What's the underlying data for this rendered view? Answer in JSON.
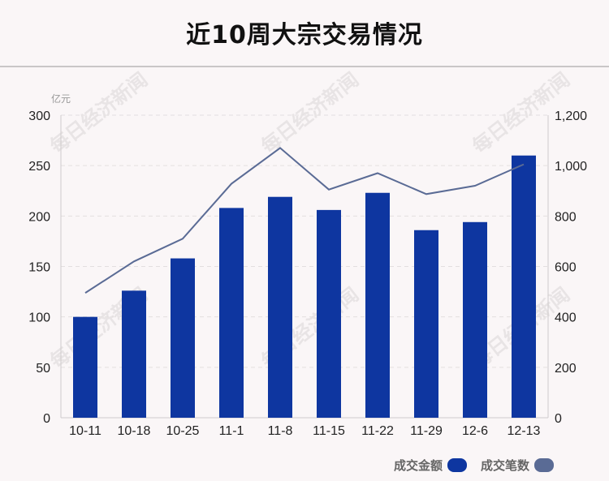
{
  "title": "近10周大宗交易情况",
  "chart_data": {
    "type": "bar",
    "categories": [
      "10-11",
      "10-18",
      "10-25",
      "11-1",
      "11-8",
      "11-15",
      "11-22",
      "11-29",
      "12-6",
      "12-13"
    ],
    "series": [
      {
        "name": "成交金额",
        "type": "bar",
        "axis": "left",
        "color": "#0e36a0",
        "values": [
          100,
          126,
          158,
          208,
          219,
          206,
          223,
          186,
          194,
          260
        ]
      },
      {
        "name": "成交笔数",
        "type": "line",
        "axis": "right",
        "color": "#5a6b95",
        "values": [
          495,
          620,
          710,
          928,
          1070,
          905,
          970,
          887,
          920,
          1005
        ]
      }
    ],
    "y_left": {
      "unit": "亿元",
      "ticks": [
        "0",
        "50",
        "100",
        "150",
        "200",
        "250",
        "300"
      ],
      "ylim": [
        0,
        300
      ]
    },
    "y_right": {
      "ticks": [
        "0",
        "200",
        "400",
        "600",
        "800",
        "1,000",
        "1,200"
      ],
      "ylim": [
        0,
        1200
      ]
    },
    "grid": true,
    "legend_position": "bottom-right",
    "watermark": "每日经济新闻"
  }
}
